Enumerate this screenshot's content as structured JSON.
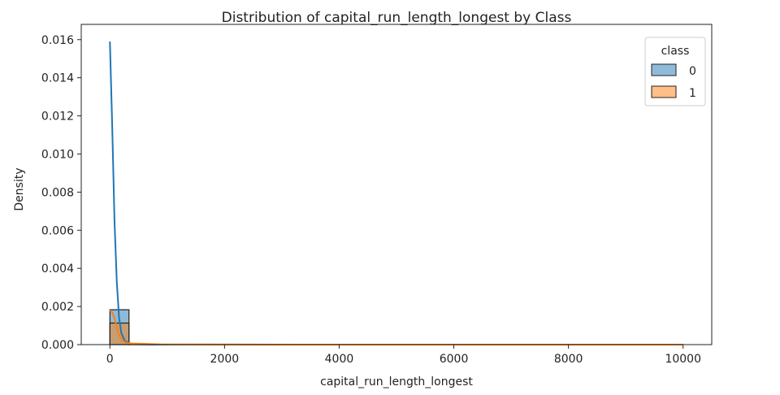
{
  "chart_data": {
    "type": "histogram",
    "title": "Distribution of capital_run_length_longest by Class",
    "xlabel": "capital_run_length_longest",
    "ylabel": "Density",
    "xlim": [
      -500,
      10500
    ],
    "ylim": [
      0,
      0.0168
    ],
    "xticks": [
      0,
      2000,
      4000,
      6000,
      8000,
      10000
    ],
    "xtick_labels": [
      "0",
      "2000",
      "4000",
      "6000",
      "8000",
      "10000"
    ],
    "yticks": [
      0.0,
      0.002,
      0.004,
      0.006,
      0.008,
      0.01,
      0.012,
      0.014,
      0.016
    ],
    "ytick_labels": [
      "0.000",
      "0.002",
      "0.004",
      "0.006",
      "0.008",
      "0.010",
      "0.012",
      "0.014",
      "0.016"
    ],
    "bin_width": 333,
    "legend": {
      "title": "class",
      "position": "top-right"
    },
    "series": [
      {
        "name": "0",
        "color": "#1f77b4",
        "bins": [
          {
            "x0": 0,
            "x1": 333,
            "density": 0.00183
          },
          {
            "x0": 333,
            "x1": 666,
            "density": 2e-05
          }
        ],
        "kde": [
          [
            0,
            0.0159
          ],
          [
            40,
            0.0115
          ],
          [
            80,
            0.0065
          ],
          [
            120,
            0.0033
          ],
          [
            160,
            0.0014
          ],
          [
            200,
            0.0006
          ],
          [
            260,
            0.0002
          ],
          [
            350,
            5e-05
          ],
          [
            500,
            1e-05
          ],
          [
            1000,
            5e-06
          ],
          [
            3000,
            2e-06
          ],
          [
            6000,
            1e-06
          ],
          [
            10000,
            5e-07
          ]
        ]
      },
      {
        "name": "1",
        "color": "#ff7f0e",
        "bins": [
          {
            "x0": 0,
            "x1": 333,
            "density": 0.00113
          },
          {
            "x0": 333,
            "x1": 666,
            "density": 3e-05
          },
          {
            "x0": 666,
            "x1": 999,
            "density": 1e-05
          }
        ],
        "kde": [
          [
            0,
            0.0018
          ],
          [
            40,
            0.0017
          ],
          [
            80,
            0.0014
          ],
          [
            120,
            0.0009
          ],
          [
            160,
            0.0005
          ],
          [
            220,
            0.0002
          ],
          [
            300,
            8e-05
          ],
          [
            400,
            6e-05
          ],
          [
            550,
            5e-05
          ],
          [
            700,
            3e-05
          ],
          [
            900,
            1e-05
          ],
          [
            1500,
            4e-06
          ],
          [
            4000,
            1e-06
          ],
          [
            10000,
            2e-07
          ]
        ]
      }
    ]
  }
}
